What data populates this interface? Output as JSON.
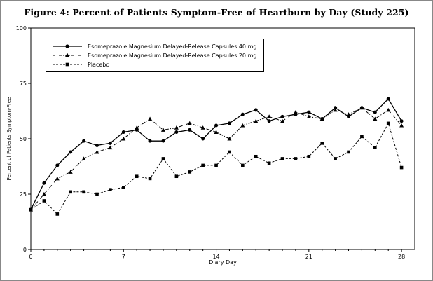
{
  "figure": {
    "title": "Figure 4: Percent of Patients Symptom-Free of Heartburn by Day (Study 225)"
  },
  "chart_data": {
    "type": "line",
    "title": "Figure 4: Percent of Patients Symptom-Free of Heartburn by Day (Study 225)",
    "xlabel": "Diary Day",
    "ylabel": "Percent of Patients Symptom-Free",
    "xlim": [
      0,
      29
    ],
    "ylim": [
      0,
      100
    ],
    "x_ticks": [
      0,
      7,
      14,
      21,
      28
    ],
    "y_ticks": [
      0,
      25,
      50,
      75,
      100
    ],
    "grid": false,
    "legend_position": "top-left",
    "colors": {
      "line": "#000000",
      "background": "#ffffff"
    },
    "x": [
      0,
      1,
      2,
      3,
      4,
      5,
      6,
      7,
      8,
      9,
      10,
      11,
      12,
      13,
      14,
      15,
      16,
      17,
      18,
      19,
      20,
      21,
      22,
      23,
      24,
      25,
      26,
      27,
      28
    ],
    "series": [
      {
        "name": "Esomeprazole Magnesium Delayed-Release Capsules 40 mg",
        "marker": "circle",
        "line_style": "solid",
        "values": [
          18,
          30,
          38,
          44,
          49,
          47,
          48,
          53,
          54,
          49,
          49,
          53,
          54,
          50,
          56,
          57,
          61,
          63,
          58,
          60,
          61,
          62,
          59,
          64,
          60,
          64,
          62,
          68,
          58
        ]
      },
      {
        "name": "Esomeprazole Magnesium Delayed-Release Capsules 20 mg",
        "marker": "triangle",
        "line_style": "dashdot",
        "values": [
          18,
          25,
          32,
          35,
          41,
          44,
          46,
          50,
          55,
          59,
          54,
          55,
          57,
          55,
          53,
          50,
          56,
          58,
          60,
          58,
          62,
          60,
          59,
          63,
          61,
          64,
          59,
          63,
          56
        ]
      },
      {
        "name": "Placebo",
        "marker": "square",
        "line_style": "dashed",
        "values": [
          18,
          22,
          16,
          26,
          26,
          25,
          27,
          28,
          33,
          32,
          41,
          33,
          35,
          38,
          38,
          44,
          38,
          42,
          39,
          41,
          41,
          42,
          48,
          41,
          44,
          51,
          46,
          57,
          37
        ]
      }
    ]
  }
}
